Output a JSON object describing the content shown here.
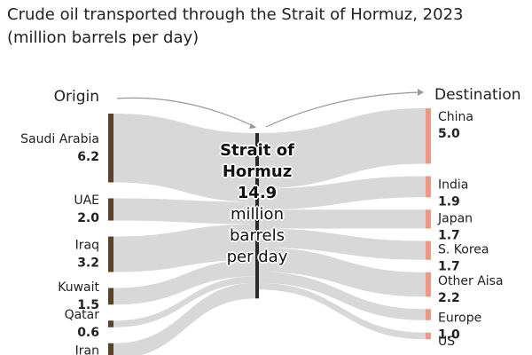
{
  "chart_data": {
    "type": "sankey",
    "title": "Crude oil transported through the Strait of Hormuz, 2023 (million barrels per day)",
    "origin_label": "Origin",
    "destination_label": "Destination",
    "center": {
      "label": "Strait of Hormuz",
      "value": 14.9,
      "unit": "million barrels per day"
    },
    "sources": {
      "categories": [
        "Saudi Arabia",
        "UAE",
        "Iraq",
        "Kuwait",
        "Qatar",
        "Iran"
      ],
      "values": [
        6.2,
        2.0,
        3.2,
        1.5,
        0.6,
        1.4
      ],
      "value_labels": [
        "6.2",
        "2.0",
        "3.2",
        "1.5",
        "0.6",
        null
      ],
      "color": "#5b4226"
    },
    "destinations": {
      "categories": [
        "China",
        "India",
        "Japan",
        "S. Korea",
        "Other Aisa",
        "Europe",
        "US"
      ],
      "values": [
        5.0,
        1.9,
        1.7,
        1.7,
        2.2,
        1.0,
        0.6
      ],
      "value_labels": [
        "5.0",
        "1.9",
        "1.7",
        "1.7",
        "2.2",
        "1.0",
        null
      ],
      "color": "#e8998a"
    },
    "flow_color": "#d4d4d4"
  }
}
